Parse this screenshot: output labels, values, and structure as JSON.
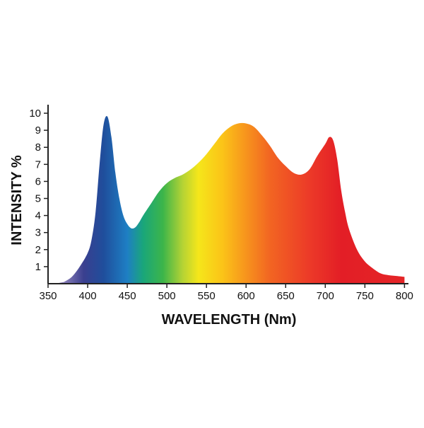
{
  "chart_data": {
    "type": "area",
    "title": "",
    "xlabel": "WAVELENGTH (Nm)",
    "ylabel": "INTENSITY %",
    "xlim": [
      350,
      805
    ],
    "ylim": [
      0,
      10.5
    ],
    "grid": false,
    "x_ticks": [
      350,
      400,
      450,
      500,
      550,
      600,
      650,
      700,
      750,
      800
    ],
    "y_ticks": [
      1,
      2,
      3,
      4,
      5,
      6,
      7,
      8,
      9,
      10
    ],
    "x_tick_labels": [
      "350",
      "400",
      "450",
      "500",
      "550",
      "600",
      "650",
      "700",
      "750",
      "800"
    ],
    "y_tick_labels": [
      "1",
      "2",
      "3",
      "4",
      "5",
      "6",
      "7",
      "8",
      "9",
      "10"
    ],
    "fill": "visible-spectrum gradient",
    "x": [
      370,
      380,
      390,
      400,
      405,
      410,
      415,
      420,
      425,
      430,
      435,
      440,
      445,
      450,
      455,
      460,
      465,
      470,
      480,
      490,
      500,
      510,
      520,
      530,
      540,
      550,
      560,
      570,
      580,
      590,
      600,
      610,
      620,
      630,
      640,
      650,
      660,
      670,
      680,
      690,
      700,
      705,
      710,
      715,
      720,
      725,
      730,
      740,
      750,
      760,
      770,
      780,
      790,
      800
    ],
    "y": [
      0.1,
      0.4,
      1.0,
      1.8,
      2.6,
      4.2,
      7.0,
      9.3,
      9.8,
      8.6,
      6.5,
      5.0,
      4.0,
      3.5,
      3.25,
      3.3,
      3.6,
      4.0,
      4.7,
      5.4,
      5.9,
      6.2,
      6.4,
      6.7,
      7.1,
      7.6,
      8.2,
      8.8,
      9.2,
      9.4,
      9.4,
      9.2,
      8.7,
      8.1,
      7.4,
      6.9,
      6.5,
      6.4,
      6.7,
      7.5,
      8.2,
      8.6,
      8.4,
      7.3,
      5.5,
      4.2,
      3.2,
      2.0,
      1.3,
      0.9,
      0.6,
      0.5,
      0.45,
      0.4
    ],
    "gradient_stops": [
      {
        "wavelength": 370,
        "color": "#8a7fb8"
      },
      {
        "wavelength": 395,
        "color": "#3a3f8f"
      },
      {
        "wavelength": 420,
        "color": "#1f4e9c"
      },
      {
        "wavelength": 450,
        "color": "#1e7fc4"
      },
      {
        "wavelength": 470,
        "color": "#1aa67a"
      },
      {
        "wavelength": 495,
        "color": "#3cb54a"
      },
      {
        "wavelength": 520,
        "color": "#b5d334"
      },
      {
        "wavelength": 540,
        "color": "#f5e61a"
      },
      {
        "wavelength": 570,
        "color": "#fbc418"
      },
      {
        "wavelength": 600,
        "color": "#f7941d"
      },
      {
        "wavelength": 630,
        "color": "#f26522"
      },
      {
        "wavelength": 680,
        "color": "#ec3a28"
      },
      {
        "wavelength": 720,
        "color": "#e31e26"
      },
      {
        "wavelength": 800,
        "color": "#e42527"
      }
    ]
  }
}
